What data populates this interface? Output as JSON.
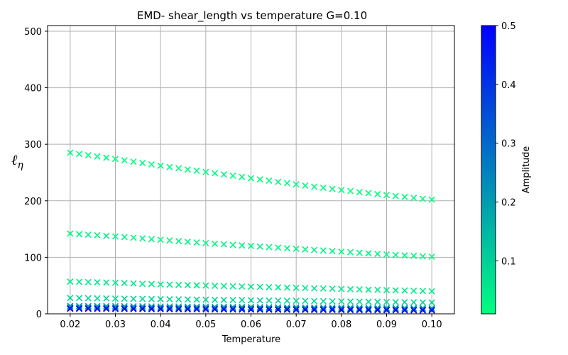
{
  "chart_data": {
    "type": "scatter",
    "title": "EMD- shear_length vs temperature G=0.10",
    "xlabel": "Temperature",
    "ylabel": "ℓ",
    "ylabel_subscript": "η",
    "xlim": [
      0.015,
      0.105
    ],
    "ylim": [
      0,
      510
    ],
    "x_ticks": [
      "0.02",
      "0.03",
      "0.04",
      "0.05",
      "0.06",
      "0.07",
      "0.08",
      "0.09",
      "0.10"
    ],
    "y_ticks": [
      "0",
      "100",
      "200",
      "300",
      "400",
      "500"
    ],
    "grid": true,
    "marker": "x",
    "x": [
      0.02,
      0.03,
      0.04,
      0.05,
      0.06,
      0.07,
      0.08,
      0.09,
      0.1
    ],
    "series": [
      {
        "amplitude": 0.01,
        "color": "#00ff80",
        "values": [
          285,
          274,
          262,
          251,
          240,
          229,
          219,
          210,
          202
        ]
      },
      {
        "amplitude": 0.02,
        "color": "#00f884",
        "values": [
          142,
          137,
          131,
          125,
          120,
          115,
          110,
          105,
          101
        ]
      },
      {
        "amplitude": 0.05,
        "color": "#00ec8a",
        "values": [
          57,
          55,
          52,
          50,
          48,
          46,
          44,
          42,
          40
        ]
      },
      {
        "amplitude": 0.1,
        "color": "#00d696",
        "values": [
          28,
          27,
          26,
          25,
          24,
          23,
          22,
          21,
          20
        ]
      },
      {
        "amplitude": 0.2,
        "color": "#00aaaa",
        "values": [
          14,
          13.5,
          13,
          12.5,
          12,
          11.5,
          11,
          10.5,
          10
        ]
      },
      {
        "amplitude": 0.3,
        "color": "#0080c0",
        "values": [
          11.5,
          11,
          10.5,
          10,
          9.6,
          9.2,
          8.8,
          8.4,
          8
        ]
      },
      {
        "amplitude": 0.4,
        "color": "#0055d5",
        "values": [
          10,
          9.6,
          9.2,
          8.8,
          8.4,
          8,
          7.7,
          7.4,
          7
        ]
      },
      {
        "amplitude": 0.5,
        "color": "#0000ff",
        "values": [
          9,
          8.6,
          8.2,
          7.8,
          7.4,
          7,
          6.7,
          6.4,
          6
        ]
      }
    ],
    "colorbar": {
      "label": "Amplitude",
      "range": [
        0.01,
        0.5
      ],
      "ticks": [
        "0.1",
        "0.2",
        "0.3",
        "0.4",
        "0.5"
      ],
      "colors": [
        "#00ff80",
        "#0000ff"
      ]
    }
  }
}
